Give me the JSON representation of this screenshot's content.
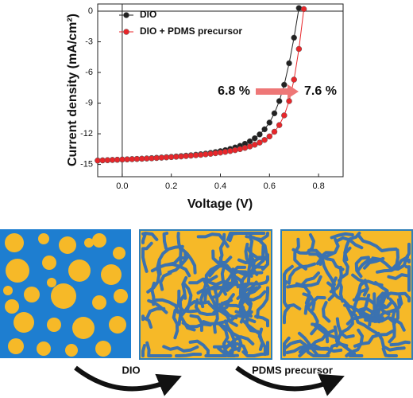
{
  "chart_data": {
    "type": "line",
    "x_label": "Voltage (V)",
    "y_label": "Current density (mA/cm²)",
    "xlim": [
      -0.1,
      0.9
    ],
    "ylim": [
      -16.2,
      0.7
    ],
    "xticks": [
      {
        "value": 0,
        "label": "0.0"
      },
      {
        "value": 0.2,
        "label": "0.2"
      },
      {
        "value": 0.4,
        "label": "0.4"
      },
      {
        "value": 0.6,
        "label": "0.6"
      },
      {
        "value": 0.8,
        "label": "0.8"
      }
    ],
    "yticks": [
      0,
      -3,
      -6,
      -9,
      -12,
      -15
    ],
    "legend": "top left",
    "series": [
      {
        "name": "DIO",
        "color": "#222222",
        "x": [
          -0.1,
          -0.08,
          -0.06,
          -0.04,
          -0.02,
          0,
          0.02,
          0.04,
          0.06,
          0.08,
          0.1,
          0.12,
          0.14,
          0.16,
          0.18,
          0.2,
          0.22,
          0.24,
          0.26,
          0.28,
          0.3,
          0.32,
          0.34,
          0.36,
          0.38,
          0.4,
          0.42,
          0.44,
          0.46,
          0.48,
          0.5,
          0.52,
          0.54,
          0.56,
          0.58,
          0.6,
          0.62,
          0.64,
          0.66,
          0.68,
          0.7,
          0.72
        ],
        "values": [
          -14.62,
          -14.6,
          -14.58,
          -14.56,
          -14.54,
          -14.52,
          -14.5,
          -14.48,
          -14.46,
          -14.44,
          -14.41,
          -14.38,
          -14.35,
          -14.32,
          -14.29,
          -14.26,
          -14.22,
          -14.18,
          -14.14,
          -14.1,
          -14.05,
          -14.0,
          -13.94,
          -13.87,
          -13.79,
          -13.7,
          -13.6,
          -13.48,
          -13.34,
          -13.18,
          -12.98,
          -12.74,
          -12.44,
          -12.06,
          -11.56,
          -10.9,
          -10.0,
          -8.8,
          -7.2,
          -5.1,
          -2.6,
          0.3
        ]
      },
      {
        "name": "DIO + PDMS precursor",
        "color": "#e8262a",
        "x": [
          -0.1,
          -0.08,
          -0.06,
          -0.04,
          -0.02,
          0,
          0.02,
          0.04,
          0.06,
          0.08,
          0.1,
          0.12,
          0.14,
          0.16,
          0.18,
          0.2,
          0.22,
          0.24,
          0.26,
          0.28,
          0.3,
          0.32,
          0.34,
          0.36,
          0.38,
          0.4,
          0.42,
          0.44,
          0.46,
          0.48,
          0.5,
          0.52,
          0.54,
          0.56,
          0.58,
          0.6,
          0.62,
          0.64,
          0.66,
          0.68,
          0.7,
          0.72,
          0.74
        ],
        "values": [
          -14.62,
          -14.6,
          -14.58,
          -14.56,
          -14.54,
          -14.52,
          -14.5,
          -14.48,
          -14.46,
          -14.44,
          -14.42,
          -14.4,
          -14.37,
          -14.34,
          -14.31,
          -14.28,
          -14.25,
          -14.22,
          -14.18,
          -14.14,
          -14.1,
          -14.06,
          -14.01,
          -13.96,
          -13.9,
          -13.84,
          -13.77,
          -13.69,
          -13.6,
          -13.5,
          -13.38,
          -13.24,
          -13.07,
          -12.86,
          -12.6,
          -12.26,
          -11.8,
          -11.15,
          -10.2,
          -8.8,
          -6.7,
          -3.7,
          0.2
        ]
      }
    ],
    "annotations": [
      "6.8 %",
      "7.6 %"
    ]
  },
  "morphology": {
    "arrow_labels": [
      "DIO",
      "PDMS precursor"
    ]
  }
}
